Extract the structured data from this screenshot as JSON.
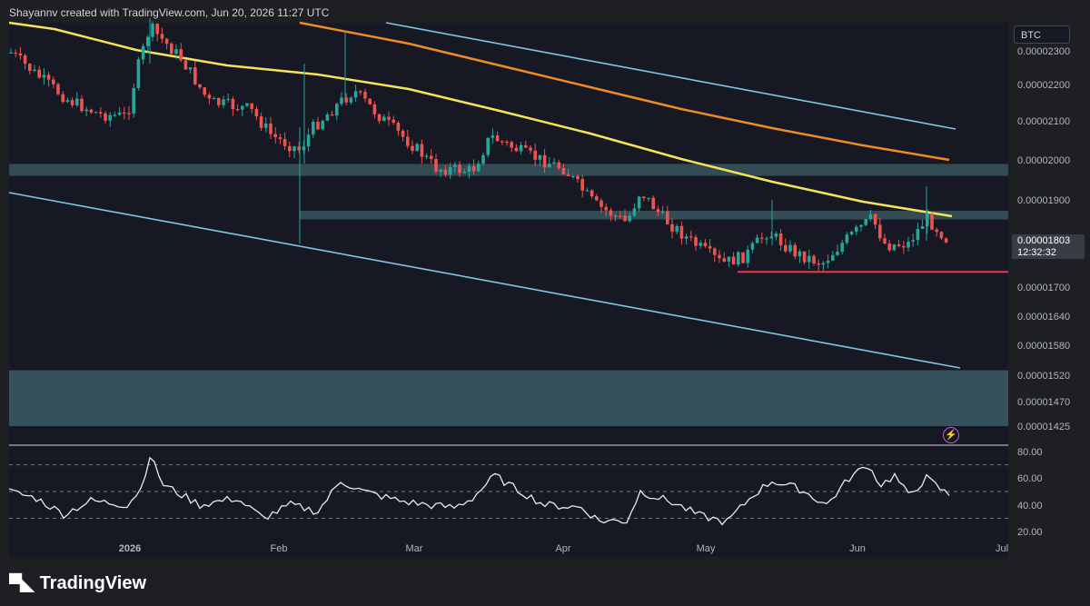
{
  "header": {
    "text": "Shayannv created with TradingView.com, Jun 20, 2026 11:27 UTC"
  },
  "symbol": "BTC",
  "price_tag": {
    "price": "0.00001803",
    "countdown": "12:32:32"
  },
  "footer": {
    "brand": "TradingView"
  },
  "icons": {
    "logo": "tradingview-logo-icon",
    "bolt": "lightning-icon"
  },
  "colors": {
    "up": "#26a69a",
    "down": "#ef5350",
    "ma_yellow": "#f5e35a",
    "ma_orange": "#f08a24",
    "channel": "#7ec8e3",
    "zone": "#3c5c66",
    "support": "#f23645",
    "rsi": "#e6edf3"
  },
  "chart_data": [
    {
      "type": "candlestick",
      "title": "",
      "price_axis": {
        "ticks": [
          "0.00002300",
          "0.00002200",
          "0.00002100",
          "0.00002000",
          "0.00001900",
          "0.00001700",
          "0.00001640",
          "0.00001580",
          "0.00001520",
          "0.00001470",
          "0.00001425"
        ]
      },
      "time_axis": {
        "ticks": [
          "2026",
          "Feb",
          "Mar",
          "Apr",
          "May",
          "Jun",
          "Jul"
        ]
      },
      "last_price": 1.803e-05,
      "moving_averages": [
        {
          "color": "yellow",
          "approx_last": 1.865e-05
        },
        {
          "color": "orange",
          "approx_last": 2.005e-05
        }
      ],
      "descending_channel": true,
      "zones": [
        {
          "low": 1.96e-05,
          "high": 1.99e-05
        },
        {
          "low": 1.855e-05,
          "high": 1.875e-05
        },
        {
          "low": 1.425e-05,
          "high": 1.53e-05
        }
      ],
      "support_line": 1.735e-05,
      "grid": false
    },
    {
      "type": "line",
      "title": "",
      "y_ticks": [
        "80.00",
        "60.00",
        "40.00",
        "20.00"
      ],
      "levels": [
        70,
        50,
        30
      ],
      "last_value": 47
    }
  ]
}
